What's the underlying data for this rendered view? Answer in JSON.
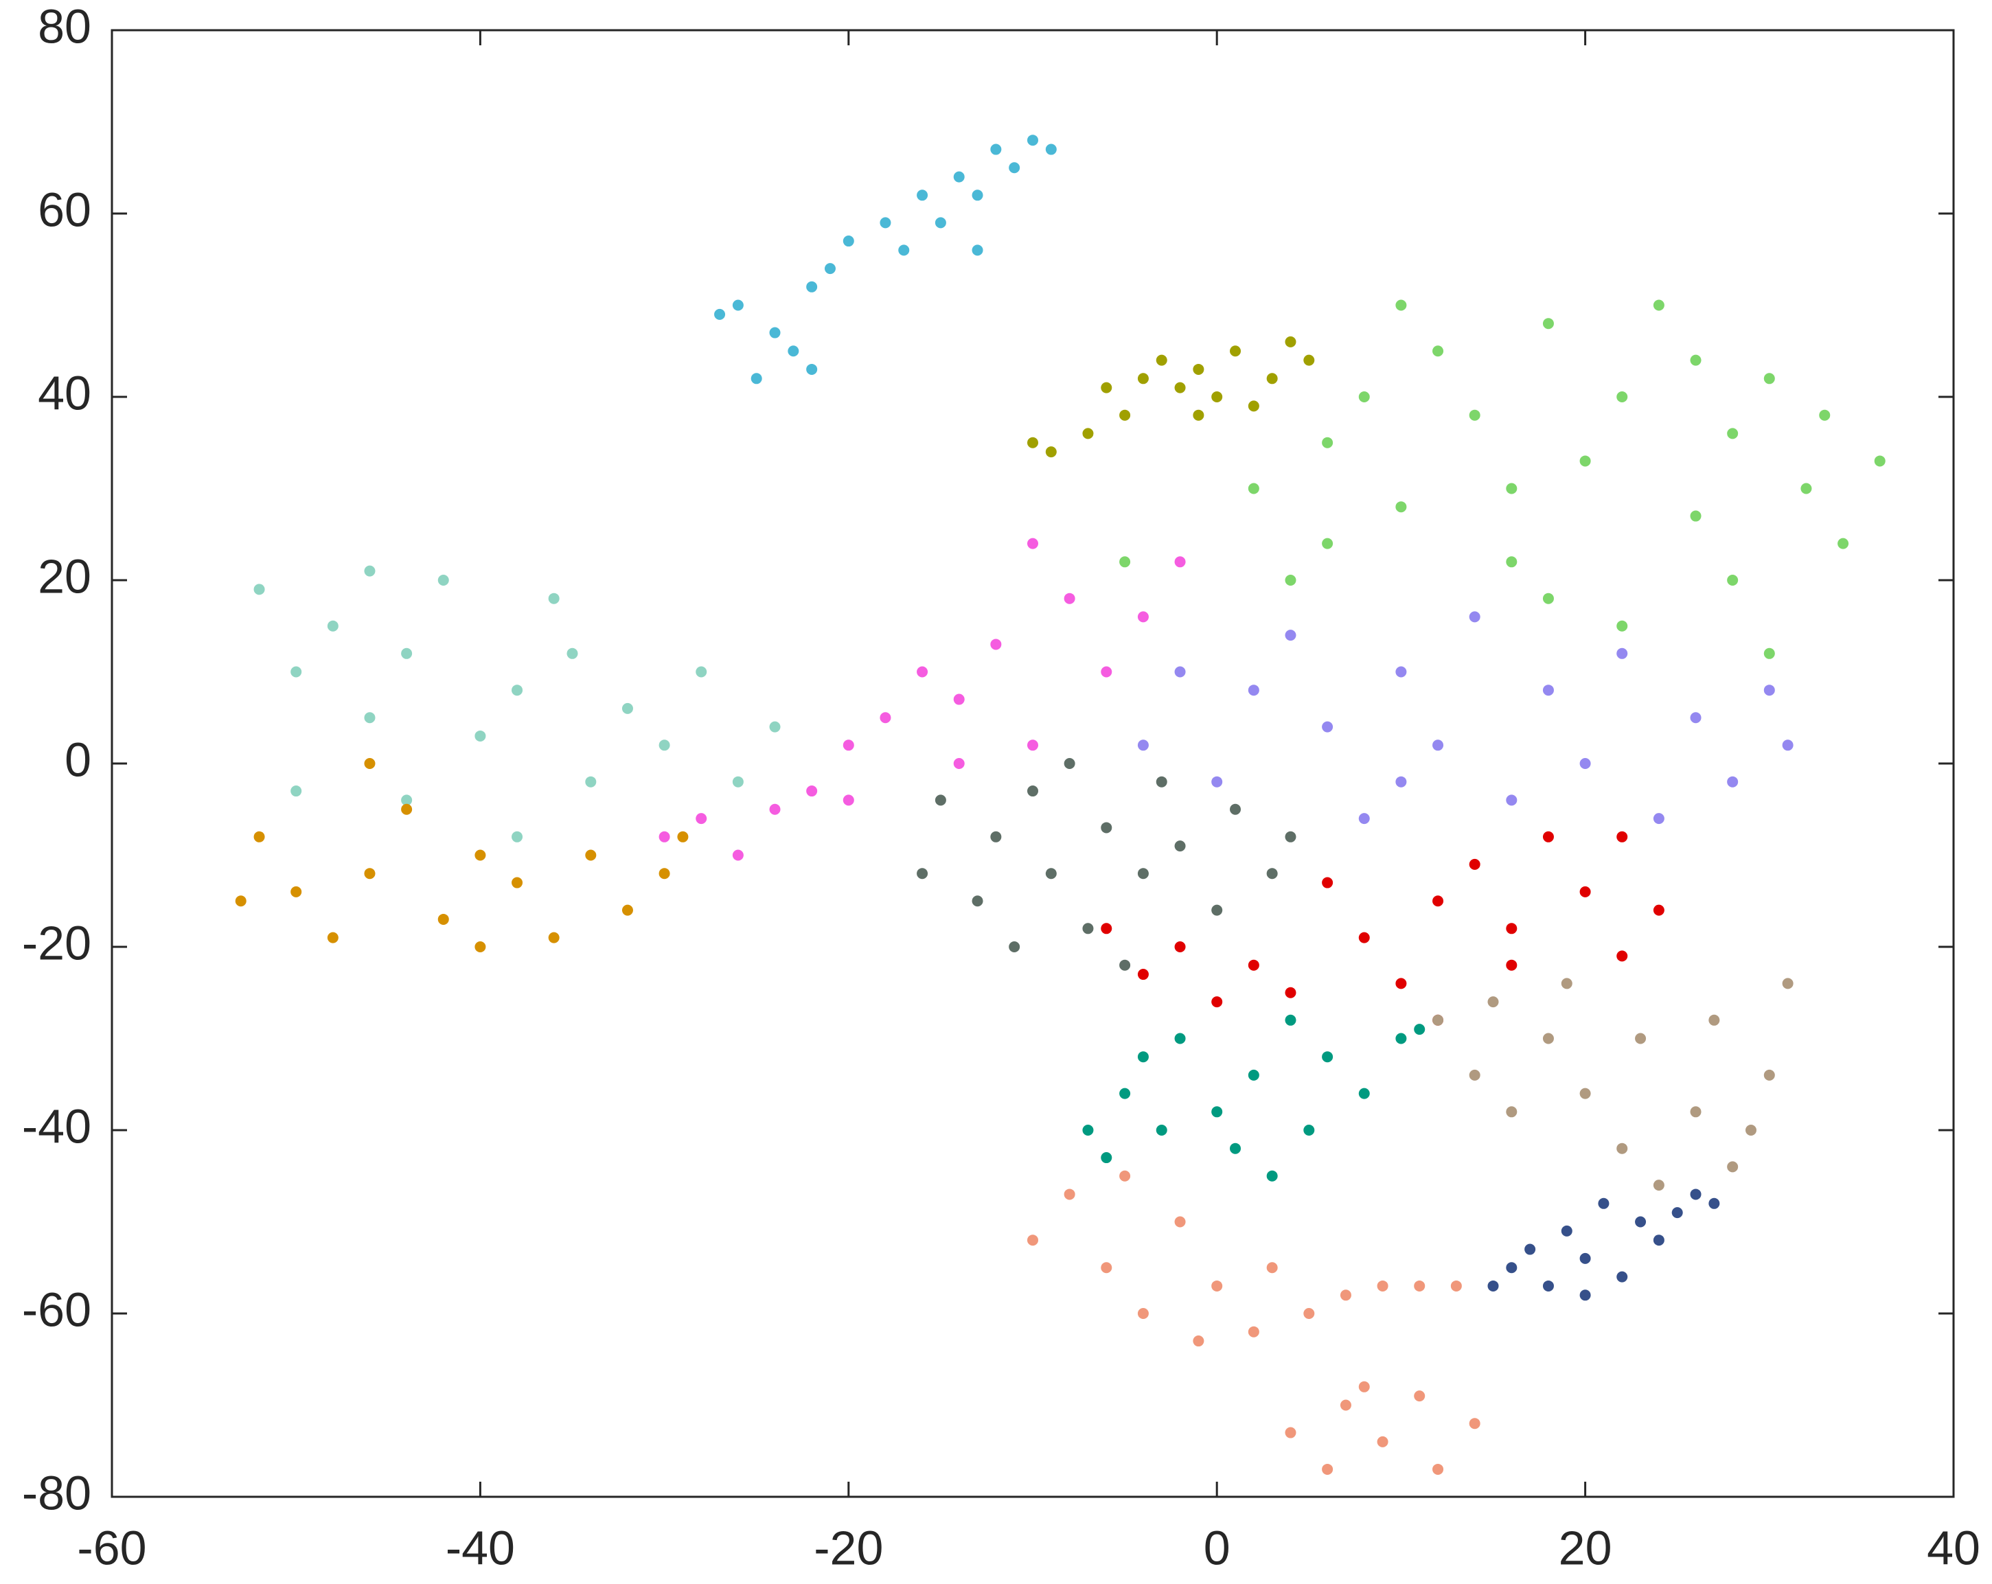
{
  "chart_data": {
    "type": "scatter",
    "xlim": [
      -60,
      40
    ],
    "ylim": [
      -80,
      80
    ],
    "xticks": [
      -60,
      -40,
      -20,
      0,
      20,
      40
    ],
    "yticks": [
      -80,
      -60,
      -40,
      -20,
      0,
      20,
      40,
      60,
      80
    ],
    "series": [
      {
        "color": "#4ab8d6",
        "x": [
          -27,
          -26,
          -25,
          -24,
          -23,
          -22,
          -21,
          -20,
          -18,
          -16,
          -15,
          -14,
          -13,
          -12,
          -11,
          -10,
          -9,
          -13,
          -17,
          -22
        ],
        "y": [
          49,
          50,
          42,
          47,
          45,
          52,
          54,
          57,
          59,
          62,
          59,
          64,
          62,
          67,
          65,
          68,
          67,
          56,
          56,
          43
        ]
      },
      {
        "color": "#a0a000",
        "x": [
          -10,
          -9,
          -7,
          -5,
          -4,
          -3,
          -2,
          -1,
          0,
          1,
          2,
          3,
          4,
          5,
          -1,
          -6
        ],
        "y": [
          35,
          34,
          36,
          38,
          42,
          44,
          41,
          43,
          40,
          45,
          39,
          42,
          46,
          44,
          38,
          41
        ]
      },
      {
        "color": "#7dd66a",
        "x": [
          2,
          4,
          6,
          8,
          10,
          12,
          14,
          16,
          18,
          20,
          22,
          24,
          26,
          28,
          30,
          32,
          34,
          36,
          22,
          30,
          6,
          16,
          26,
          10,
          18,
          28,
          33,
          -5
        ],
        "y": [
          30,
          20,
          35,
          40,
          28,
          45,
          38,
          22,
          48,
          33,
          40,
          50,
          27,
          36,
          42,
          30,
          24,
          33,
          15,
          12,
          24,
          30,
          44,
          50,
          18,
          20,
          38,
          22
        ]
      },
      {
        "color": "#8fd4c2",
        "x": [
          -52,
          -50,
          -48,
          -46,
          -44,
          -42,
          -40,
          -38,
          -36,
          -34,
          -32,
          -30,
          -28,
          -26,
          -24,
          -38,
          -44,
          -50,
          -35,
          -46
        ],
        "y": [
          19,
          10,
          15,
          5,
          12,
          20,
          3,
          8,
          18,
          -2,
          6,
          2,
          10,
          -2,
          4,
          -8,
          -4,
          -3,
          12,
          21
        ]
      },
      {
        "color": "#d69000",
        "x": [
          -53,
          -52,
          -50,
          -48,
          -46,
          -44,
          -42,
          -40,
          -38,
          -36,
          -34,
          -32,
          -30,
          -29,
          -46,
          -40
        ],
        "y": [
          -15,
          -8,
          -14,
          -19,
          -12,
          -5,
          -17,
          -20,
          -13,
          -19,
          -10,
          -16,
          -12,
          -8,
          0,
          -10
        ]
      },
      {
        "color": "#f55ce0",
        "x": [
          -30,
          -28,
          -26,
          -24,
          -22,
          -20,
          -18,
          -16,
          -14,
          -12,
          -10,
          -8,
          -6,
          -4,
          -2,
          -10,
          -14,
          -20
        ],
        "y": [
          -8,
          -6,
          -10,
          -5,
          -3,
          2,
          5,
          10,
          7,
          13,
          2,
          18,
          10,
          16,
          22,
          24,
          0,
          -4
        ]
      },
      {
        "color": "#9488f0",
        "x": [
          -4,
          -2,
          0,
          2,
          4,
          6,
          8,
          10,
          12,
          14,
          16,
          18,
          20,
          22,
          24,
          26,
          28,
          30,
          31,
          10
        ],
        "y": [
          2,
          10,
          -2,
          8,
          14,
          4,
          -6,
          10,
          2,
          16,
          -4,
          8,
          0,
          12,
          -6,
          5,
          -2,
          8,
          2,
          -2
        ]
      },
      {
        "color": "#5e6e66",
        "x": [
          -16,
          -15,
          -13,
          -12,
          -11,
          -10,
          -9,
          -8,
          -7,
          -6,
          -5,
          -4,
          -3,
          -2,
          0,
          1,
          3,
          4
        ],
        "y": [
          -12,
          -4,
          -15,
          -8,
          -20,
          -3,
          -12,
          0,
          -18,
          -7,
          -22,
          -12,
          -2,
          -9,
          -16,
          -5,
          -12,
          -8
        ]
      },
      {
        "color": "#e00000",
        "x": [
          -6,
          -4,
          -2,
          0,
          2,
          4,
          6,
          8,
          10,
          12,
          14,
          16,
          18,
          20,
          22,
          24,
          12,
          16,
          22
        ],
        "y": [
          -18,
          -23,
          -20,
          -26,
          -22,
          -25,
          -13,
          -19,
          -24,
          -15,
          -11,
          -18,
          -8,
          -14,
          -21,
          -16,
          -28,
          -22,
          -8
        ]
      },
      {
        "color": "#009a80",
        "x": [
          -7,
          -6,
          -5,
          -4,
          -3,
          -2,
          0,
          1,
          2,
          4,
          5,
          6,
          8,
          10,
          11,
          3
        ],
        "y": [
          -40,
          -43,
          -36,
          -32,
          -40,
          -30,
          -38,
          -42,
          -34,
          -28,
          -40,
          -32,
          -36,
          -30,
          -29,
          -45
        ]
      },
      {
        "color": "#b09a80",
        "x": [
          12,
          14,
          15,
          16,
          18,
          19,
          20,
          22,
          23,
          24,
          26,
          27,
          28,
          30,
          31,
          29
        ],
        "y": [
          -28,
          -34,
          -26,
          -38,
          -30,
          -24,
          -36,
          -42,
          -30,
          -46,
          -38,
          -28,
          -44,
          -34,
          -24,
          -40
        ]
      },
      {
        "color": "#36508a",
        "x": [
          15,
          16,
          17,
          18,
          19,
          20,
          21,
          22,
          23,
          24,
          25,
          26,
          27,
          20
        ],
        "y": [
          -57,
          -55,
          -53,
          -57,
          -51,
          -54,
          -48,
          -56,
          -50,
          -52,
          -49,
          -47,
          -48,
          -58
        ]
      },
      {
        "color": "#f0977a",
        "x": [
          -10,
          -8,
          -6,
          -5,
          -4,
          -2,
          -1,
          0,
          2,
          3,
          5,
          7,
          9,
          11,
          13,
          4,
          6,
          7,
          9,
          11,
          12,
          14,
          8
        ],
        "y": [
          -52,
          -47,
          -55,
          -45,
          -60,
          -50,
          -63,
          -57,
          -62,
          -55,
          -60,
          -58,
          -57,
          -57,
          -57,
          -73,
          -77,
          -70,
          -74,
          -69,
          -77,
          -72,
          -68
        ]
      }
    ]
  }
}
